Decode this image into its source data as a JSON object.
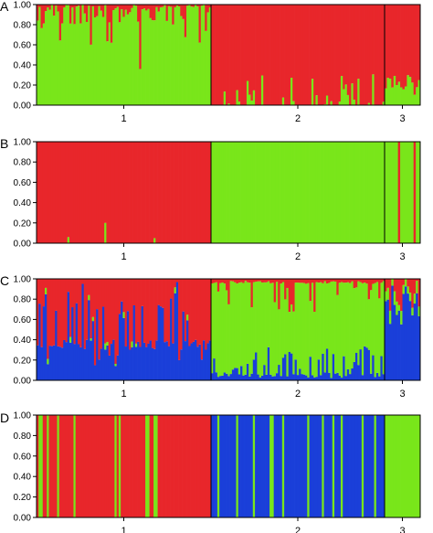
{
  "colors": {
    "red": "#e8262b",
    "green": "#79e61a",
    "blue": "#1a3fd9"
  },
  "chart_data": [
    {
      "type": "bar",
      "stacked": true,
      "panel_letter": "A",
      "ylim": [
        0,
        1
      ],
      "yticks": [
        "0.00",
        "0.20",
        "0.40",
        "0.60",
        "0.80",
        "1.00"
      ],
      "group_labels": [
        "1",
        "2",
        "3"
      ],
      "group_counts": [
        85,
        83,
        16
      ],
      "series": [
        {
          "color": "green"
        },
        {
          "color": "red"
        }
      ],
      "pattern": "Group 1: mostly green (0.60-1.00) with red spikes; group 2: mostly red with thin green bars up to ~0.30; group 3: red over green ~0.20"
    },
    {
      "type": "bar",
      "stacked": true,
      "panel_letter": "B",
      "ylim": [
        0,
        1
      ],
      "yticks": [
        "0.00",
        "0.20",
        "0.40",
        "0.60",
        "0.80",
        "1.00"
      ],
      "group_labels": [
        "1",
        "2",
        "3"
      ],
      "group_counts": [
        85,
        83,
        16
      ],
      "series": [
        {
          "color": "green"
        },
        {
          "color": "red"
        }
      ],
      "pattern": "Group 1: red ~1.00 with tiny green spikes (~0.20); group 2: green ~1.00; group 3: green with two red bars"
    },
    {
      "type": "bar",
      "stacked": true,
      "panel_letter": "C",
      "ylim": [
        0,
        1
      ],
      "yticks": [
        "0.00",
        "0.20",
        "0.40",
        "0.60",
        "0.80",
        "1.00"
      ],
      "group_labels": [
        "1",
        "2",
        "3"
      ],
      "group_counts": [
        85,
        83,
        16
      ],
      "series": [
        {
          "color": "blue"
        },
        {
          "color": "green"
        },
        {
          "color": "red"
        }
      ],
      "pattern": "Group 1: blue ~0.35 with tall blue spikes, red on top; group 2: green majority with blue bars up to ~0.35 and red at top; group 3: blue ~0.60-0.90 with green and red"
    },
    {
      "type": "bar",
      "stacked": true,
      "panel_letter": "D",
      "ylim": [
        0,
        1
      ],
      "yticks": [
        "0.00",
        "0.20",
        "0.40",
        "0.60",
        "0.80",
        "1.00"
      ],
      "group_labels": [
        "1",
        "2",
        "3"
      ],
      "group_counts": [
        85,
        83,
        16
      ],
      "series": [
        {
          "color": "green"
        },
        {
          "color": "red"
        },
        {
          "color": "blue"
        }
      ],
      "pattern": "Group 1: red with full-height green bars; group 2: blue with full-height green bars; group 3: green"
    }
  ]
}
